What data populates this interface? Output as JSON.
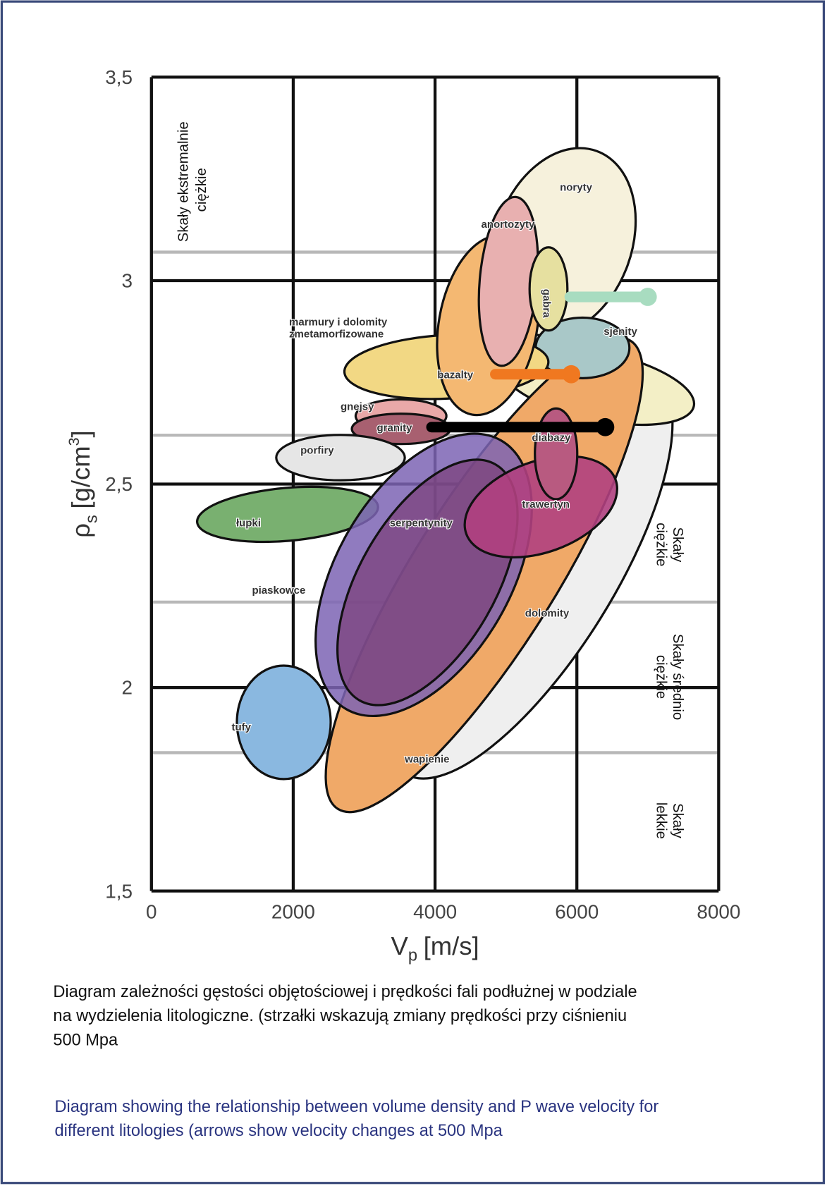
{
  "chart_data": {
    "type": "region",
    "y_label": {
      "symbol": "ρ",
      "subscript": "s",
      "unit": "[g/cm",
      "superscript": "3",
      "close": "]"
    },
    "x_label": {
      "symbol": "V",
      "subscript": "p",
      "unit": "[m/s]"
    },
    "xlim": [
      0,
      8000
    ],
    "xticks": [
      0,
      2000,
      4000,
      6000,
      8000
    ],
    "ylim": [
      1.5,
      3.5
    ],
    "yticks": [
      {
        "value": 1.5,
        "label": "1,5"
      },
      2,
      {
        "value": 2.5,
        "label": "2,5"
      },
      3,
      {
        "value": 3.5,
        "label": "3,5"
      }
    ],
    "grid": true,
    "class_boundaries": [
      3.07,
      2.62,
      2.21,
      1.84
    ],
    "rock_classes": [
      [
        "Skały ekstremalnie",
        "ciężkie"
      ],
      [
        "Skały",
        "ciężkie"
      ],
      [
        "Skały średnio",
        "ciężkie"
      ],
      [
        "Skały",
        "lekkie"
      ]
    ],
    "regions": [
      "noryty",
      "anortozyty",
      "gabra",
      "sjenity",
      "marmury i dolomity",
      "zmetamorfizowane",
      "bazalty",
      "gnejsy",
      "granity",
      "diabazy",
      "porfiry",
      "łupki",
      "serpentynity",
      "trawertyn",
      "piaskowce",
      "dolomity",
      "tufy",
      "wapienie"
    ],
    "arrows": [
      {
        "x": [
          5900,
          7000
        ],
        "y": 2.96,
        "color": "#a8dcc0"
      },
      {
        "x": [
          4850,
          5920
        ],
        "y": 2.77,
        "color": "#f07820"
      },
      {
        "x": [
          3950,
          6400
        ],
        "y": 2.64,
        "color": "#000000"
      }
    ]
  },
  "caption_pl": [
    "Diagram zależności gęstości objętościowej  i prędkości fali podłużnej w podziale",
    "na wydzielenia litologiczne. (strzałki wskazują zmiany prędkości przy ciśnieniu",
    "500 Mpa"
  ],
  "caption_en": [
    "Diagram showing the relationship between volume density and P wave velocity for",
    "different litologies (arrows show velocity changes at 500 Mpa"
  ]
}
